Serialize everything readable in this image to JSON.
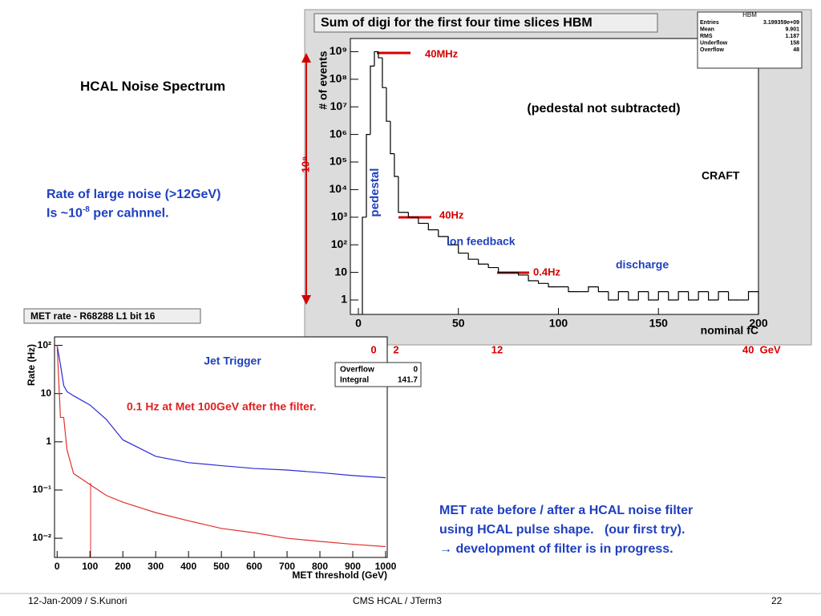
{
  "slide": {
    "title": "HCAL Noise Spectrum",
    "rate_line1": "Rate of large noise (>12GeV)",
    "rate_line2_pre": "Is ~10",
    "rate_line2_sup": "-8",
    "rate_line2_post": " per cahnnel.",
    "met_note": [
      "MET rate before / after a HCAL noise filter",
      "using HCAL pulse shape.   (our first try).",
      "→ development of filter is in progress."
    ],
    "footer_left": "12-Jan-2009 / S.Kunori",
    "footer_center": "CMS HCAL / JTerm3",
    "footer_right": "22"
  },
  "chart_data": [
    {
      "type": "histogram",
      "title": "Sum of digi for the first four time slices HBM",
      "ylabel": "# of events",
      "xlabel": "nominal fC",
      "color": "#000000",
      "log_y": true,
      "bins": [
        2,
        4,
        6,
        8,
        10,
        12,
        14,
        16,
        18,
        20,
        25,
        30,
        35,
        40,
        45,
        50,
        55,
        60,
        65,
        70,
        75,
        80,
        85,
        90,
        95,
        100,
        105,
        110,
        115,
        120,
        125,
        130,
        135,
        140,
        145,
        150,
        155,
        160,
        165,
        170,
        175,
        180,
        185,
        190,
        195,
        200
      ],
      "values": [
        1000,
        1000000,
        300000000,
        1000000000,
        600000000,
        50000000,
        3000000,
        200000,
        30000,
        1500,
        1000,
        600,
        350,
        200,
        100,
        50,
        30,
        20,
        15,
        10,
        10,
        8,
        5,
        4,
        3,
        3,
        2,
        2,
        3,
        2,
        1,
        2,
        1,
        2,
        1,
        2,
        1,
        2,
        1,
        2,
        1,
        2,
        1,
        1,
        2
      ],
      "xlim": [
        -4,
        200
      ],
      "ylim": [
        0.3,
        3000000000
      ],
      "xticks": [
        0,
        50,
        100,
        150,
        200
      ],
      "yticks": [
        {
          "value": 1,
          "label": "1"
        },
        {
          "value": 10,
          "label": "10"
        },
        {
          "value": 100,
          "label": "10²"
        },
        {
          "value": 1000,
          "label": "10³"
        },
        {
          "value": 10000,
          "label": "10⁴"
        },
        {
          "value": 100000,
          "label": "10⁵"
        },
        {
          "value": 1000000,
          "label": "10⁶"
        },
        {
          "value": 10000000,
          "label": "10⁷"
        },
        {
          "value": 100000000,
          "label": "10⁸"
        },
        {
          "value": 1000000000,
          "label": "10⁹"
        }
      ],
      "stats_title": "HBM",
      "stats": [
        {
          "label": "Entries",
          "value": "3.199359e+09"
        },
        {
          "label": "Mean",
          "value": "9.901"
        },
        {
          "label": "RMS",
          "value": "1.187"
        },
        {
          "label": "Underflow",
          "value": "158"
        },
        {
          "label": "Overflow",
          "value": "48"
        }
      ],
      "annotations": [
        {
          "text": "40MHz",
          "color": "#d40000"
        },
        {
          "text": "(pedestal not subtracted)",
          "color": "#000000"
        },
        {
          "text": "CRAFT",
          "color": "#000000"
        },
        {
          "text": "pedestal",
          "color": "#1f3fbf"
        },
        {
          "text": "40Hz",
          "color": "#d40000"
        },
        {
          "text": "Ion feedback",
          "color": "#1f3fbf"
        },
        {
          "text": "0.4Hz",
          "color": "#d40000"
        },
        {
          "text": "discharge",
          "color": "#1f3fbf"
        },
        {
          "text": "10⁹",
          "color": "#d40000"
        }
      ],
      "energy_labels": [
        "0",
        "2",
        "12",
        "40  GeV"
      ]
    },
    {
      "type": "line",
      "title": "MET rate - R68288  L1 bit 16",
      "ylabel": "Rate (Hz)",
      "xlabel": "MET  threshold (GeV)",
      "log_y": true,
      "x": [
        0,
        10,
        20,
        30,
        50,
        100,
        150,
        200,
        300,
        400,
        500,
        600,
        700,
        800,
        900,
        1000
      ],
      "series": [
        {
          "color": "#2b2bd8",
          "values": [
            100,
            40,
            14.7,
            11,
            9,
            5.8,
            2.9,
            1.1,
            0.5,
            0.37,
            0.32,
            0.28,
            0.26,
            0.23,
            0.2,
            0.18
          ]
        },
        {
          "color": "#e03030",
          "values": [
            100,
            3.2,
            3.2,
            0.68,
            0.22,
            0.13,
            0.077,
            0.056,
            0.034,
            0.023,
            0.016,
            0.013,
            0.01,
            0.0086,
            0.0075,
            0.0067
          ]
        }
      ],
      "xlim": [
        -8,
        1005
      ],
      "ylim": [
        0.004,
        150
      ],
      "xticks": [
        0,
        100,
        200,
        300,
        400,
        500,
        600,
        700,
        800,
        900,
        1000
      ],
      "yticks": [
        {
          "value": 0.01,
          "label": "10⁻²"
        },
        {
          "value": 0.1,
          "label": "10⁻¹"
        },
        1,
        10,
        {
          "value": 100,
          "label": "10²"
        }
      ],
      "stats": [
        {
          "label": "Overflow",
          "value": "0"
        },
        {
          "label": "Integral",
          "value": "141.7"
        }
      ],
      "annotations": [
        {
          "text": "Jet Trigger",
          "color": "#1f3fbf"
        },
        {
          "text": "0.1 Hz at Met 100GeV after the filter.",
          "color": "#e02020"
        }
      ]
    }
  ]
}
